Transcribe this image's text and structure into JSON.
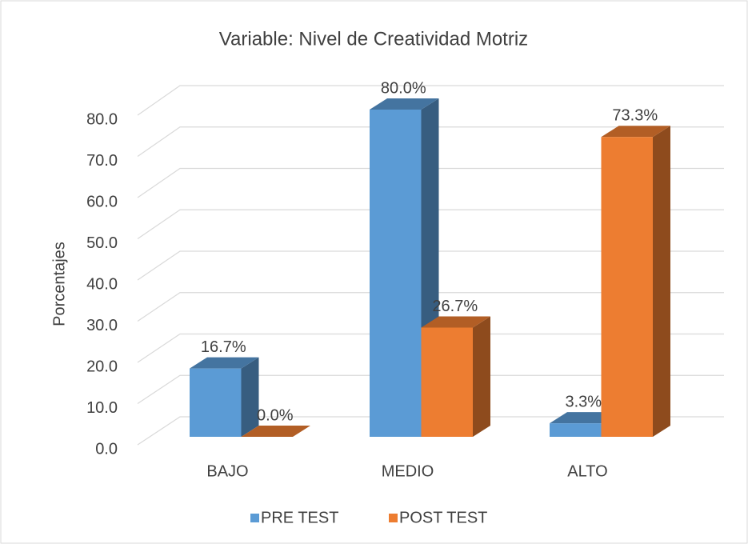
{
  "chart_data": {
    "type": "bar3d",
    "title": "Variable: Nivel de Creatividad Motriz",
    "y_label": "Porcentajes",
    "categories": [
      "BAJO",
      "MEDIO",
      "ALTO"
    ],
    "series": [
      {
        "name": "PRE TEST",
        "color": "#5b9bd5",
        "values": [
          16.7,
          80.0,
          3.3
        ],
        "value_labels": [
          "16.7%",
          "80.0%",
          "3.3%"
        ]
      },
      {
        "name": "POST TEST",
        "color": "#ed7d31",
        "values": [
          0.0,
          26.7,
          73.3
        ],
        "value_labels": [
          "0.0%",
          "26.7%",
          "73.3%"
        ]
      }
    ],
    "ylim": [
      0,
      80
    ],
    "yticks": [
      {
        "value": 0,
        "label": "0.0"
      },
      {
        "value": 10,
        "label": "10.0"
      },
      {
        "value": 20,
        "label": "20.0"
      },
      {
        "value": 30,
        "label": "30.0"
      },
      {
        "value": 40,
        "label": "40.0"
      },
      {
        "value": 50,
        "label": "50.0"
      },
      {
        "value": 60,
        "label": "60.0"
      },
      {
        "value": 70,
        "label": "70.0"
      },
      {
        "value": 80,
        "label": "80.0"
      }
    ],
    "grid": true,
    "legend": "bottom"
  }
}
